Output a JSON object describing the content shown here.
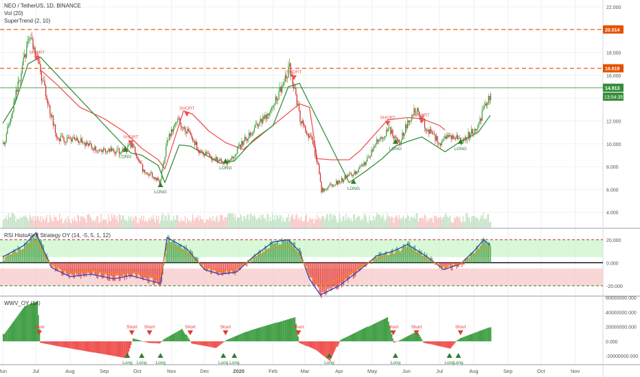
{
  "header": {
    "symbol_line": "NEO / TetherUS, 1D, BINANCE",
    "volume": "Vol (20)",
    "supertrend": "SuperTrend (2, 10)"
  },
  "colors": {
    "up": "#26a69a",
    "green_dark": "#2e7d32",
    "green_body": "#3a9e3a",
    "red": "#ef5350",
    "orange": "#e65100",
    "price_line": "#388e3c"
  },
  "chart_data": [
    {
      "type": "line",
      "panel": "price",
      "ylim": [
        2.6,
        22.6
      ],
      "yticks": [
        4,
        6,
        8,
        10,
        12,
        14,
        16,
        18,
        20,
        22
      ],
      "ytick_labels": [
        "4.000",
        "6.000",
        "8.000",
        "10.000",
        "12.000",
        "14.000",
        "16.000",
        "18.000",
        "20.000",
        "22.000"
      ],
      "x_dates": [
        "2019-06-01",
        "2019-06-25",
        "2019-07-10",
        "2019-07-20",
        "2019-08-10",
        "2019-08-25",
        "2019-09-15",
        "2019-09-25",
        "2019-10-05",
        "2019-10-15",
        "2019-10-20",
        "2019-10-28",
        "2019-11-05",
        "2019-11-15",
        "2019-11-25",
        "2019-12-10",
        "2019-12-20",
        "2019-12-28",
        "2020-01-10",
        "2020-01-25",
        "2020-02-10",
        "2020-02-15",
        "2020-02-25",
        "2020-03-05",
        "2020-03-12",
        "2020-03-15",
        "2020-03-25",
        "2020-04-05",
        "2020-04-15",
        "2020-04-25",
        "2020-05-05",
        "2020-05-15",
        "2020-05-25",
        "2020-06-02",
        "2020-06-10",
        "2020-06-20",
        "2020-07-01",
        "2020-07-10",
        "2020-07-20",
        "2020-07-28",
        "2020-08-05",
        "2020-08-12",
        "2020-08-16"
      ],
      "price": [
        10.0,
        19.5,
        14.0,
        10.5,
        10.2,
        9.6,
        9.3,
        9.9,
        7.8,
        7.2,
        6.6,
        10.5,
        12.3,
        11.0,
        9.4,
        8.6,
        8.4,
        9.2,
        10.8,
        12.5,
        15.3,
        16.7,
        12.3,
        10.4,
        8.1,
        5.9,
        6.4,
        7.0,
        7.5,
        8.4,
        10.4,
        11.2,
        10.2,
        12.2,
        13.2,
        11.1,
        10.1,
        10.7,
        10.3,
        10.9,
        11.9,
        13.5,
        14.91
      ],
      "supertrend_resistance": {
        "x": [
          "2019-07-05",
          "2019-07-20",
          "2019-08-10",
          "2019-09-01",
          "2019-09-20",
          "2019-10-05",
          "2019-10-20",
          "2019-10-26",
          "2019-11-12",
          "2019-11-20",
          "2019-12-05",
          "2019-12-20",
          "2020-01-05",
          "2020-02-25",
          "2020-03-05",
          "2020-03-12",
          "2020-03-25",
          "2020-04-10",
          "2020-04-20",
          "2020-05-15",
          "2020-06-02",
          "2020-06-15",
          "2020-07-01",
          "2020-07-06"
        ],
        "y": [
          16.5,
          15.2,
          13.2,
          12.2,
          11.0,
          9.6,
          8.6,
          7.8,
          12.9,
          12.6,
          11.1,
          10.1,
          9.5,
          13.5,
          13.2,
          8.7,
          8.6,
          8.6,
          9.4,
          12.1,
          12.3,
          12.2,
          11.6,
          11.2
        ]
      },
      "supertrend_support": {
        "x": [
          "2019-06-01",
          "2019-06-12",
          "2019-06-24",
          "2019-07-05",
          "2019-09-25",
          "2019-10-05",
          "2019-10-20",
          "2019-10-26",
          "2019-11-08",
          "2019-11-18",
          "2019-12-15",
          "2019-12-28",
          "2020-01-15",
          "2020-02-01",
          "2020-02-15",
          "2020-02-25",
          "2020-04-10",
          "2020-04-25",
          "2020-05-10",
          "2020-05-22",
          "2020-06-02",
          "2020-06-15",
          "2020-07-06",
          "2020-07-20",
          "2020-08-05",
          "2020-08-16"
        ],
        "y": [
          11.8,
          13.5,
          17.0,
          17.6,
          9.2,
          9.0,
          8.1,
          6.6,
          9.9,
          9.8,
          8.3,
          8.5,
          10.4,
          11.6,
          15.0,
          15.3,
          6.6,
          7.6,
          8.7,
          9.8,
          10.2,
          10.6,
          9.3,
          10.2,
          11.0,
          12.5
        ]
      },
      "hlines": [
        {
          "y": 20.014,
          "label": "20.014",
          "color": "#e65100",
          "style": "dashed"
        },
        {
          "y": 16.619,
          "label": "16.619",
          "color": "#e65100",
          "style": "dashed"
        },
        {
          "y": 14.913,
          "label": "14.913",
          "color": "#388e3c",
          "style": "solid"
        }
      ],
      "countdown_label": "13:54:35",
      "signals": [
        {
          "date": "2019-07-02",
          "text": "SHORT",
          "type": "short",
          "y": 17.7
        },
        {
          "date": "2019-09-25",
          "text": "SHORT",
          "type": "short",
          "y": 10.3
        },
        {
          "date": "2019-09-20",
          "text": "LONG",
          "type": "long",
          "y": 9.3
        },
        {
          "date": "2019-10-22",
          "text": "LONG",
          "type": "long",
          "y": 6.2
        },
        {
          "date": "2019-11-15",
          "text": "SHORT",
          "type": "short",
          "y": 12.8
        },
        {
          "date": "2019-12-20",
          "text": "LONG",
          "type": "long",
          "y": 8.3
        },
        {
          "date": "2020-02-20",
          "text": "SHORT",
          "type": "short",
          "y": 16.0
        },
        {
          "date": "2020-04-14",
          "text": "LONG",
          "type": "long",
          "y": 6.5
        },
        {
          "date": "2020-05-15",
          "text": "SHORT",
          "type": "short",
          "y": 12.0
        },
        {
          "date": "2020-05-22",
          "text": "LONG",
          "type": "long",
          "y": 10.0
        },
        {
          "date": "2020-06-15",
          "text": "SHORT",
          "type": "short",
          "y": 12.2
        },
        {
          "date": "2020-07-20",
          "text": "LONG",
          "type": "long",
          "y": 10.0
        }
      ]
    },
    {
      "type": "area",
      "panel": "indicator",
      "title": "RSI HistoAlert Strategy OY (14, -5, 5, 1, 12)",
      "ylim": [
        -29,
        30
      ],
      "yticks": [
        20,
        0,
        -20
      ],
      "ytick_labels": [
        "20.000",
        "0.000",
        "-20.000"
      ],
      "bands": [
        {
          "from": 5,
          "to": 20,
          "color": "#c8f5c8"
        },
        {
          "from": -5,
          "to": -20,
          "color": "#f7c6c6"
        }
      ],
      "hlines": [
        20,
        -20
      ],
      "x_dates": [
        "2019-06-01",
        "2019-06-20",
        "2019-07-01",
        "2019-07-15",
        "2019-08-01",
        "2019-08-20",
        "2019-09-10",
        "2019-09-25",
        "2019-10-10",
        "2019-10-22",
        "2019-10-28",
        "2019-11-15",
        "2019-12-01",
        "2019-12-15",
        "2019-12-30",
        "2020-01-15",
        "2020-02-01",
        "2020-02-15",
        "2020-02-25",
        "2020-03-05",
        "2020-03-15",
        "2020-04-01",
        "2020-04-20",
        "2020-05-05",
        "2020-05-20",
        "2020-06-02",
        "2020-06-20",
        "2020-07-05",
        "2020-07-20",
        "2020-08-01",
        "2020-08-10",
        "2020-08-16"
      ],
      "values": [
        5,
        15,
        26,
        -4,
        -12,
        -10,
        -14,
        -11,
        -15,
        -18,
        22,
        12,
        -6,
        -10,
        -8,
        6,
        18,
        20,
        10,
        -14,
        -28,
        -20,
        -6,
        6,
        10,
        16,
        5,
        -6,
        -1,
        10,
        20,
        15
      ]
    },
    {
      "type": "bar",
      "panel": "wvv",
      "title": "WWV_OY (14)",
      "ylim": [
        -32000000,
        62000000
      ],
      "yticks": [
        60000000,
        40000000,
        20000000,
        0,
        -20000000
      ],
      "ytick_labels": [
        "60000000.000",
        "40000000.000",
        "20000000.000",
        "0.000",
        "-20000000.000"
      ],
      "x_dates": [
        "2019-06-01",
        "2019-06-20",
        "2019-07-01",
        "2019-07-04",
        "2019-08-01",
        "2019-09-01",
        "2019-09-20",
        "2019-09-26",
        "2019-10-10",
        "2019-10-20",
        "2019-10-24",
        "2019-11-10",
        "2019-11-18",
        "2019-12-10",
        "2019-12-20",
        "2020-01-10",
        "2020-02-20",
        "2020-02-24",
        "2020-03-10",
        "2020-03-23",
        "2020-04-01",
        "2020-05-14",
        "2020-05-20",
        "2020-06-10",
        "2020-06-16",
        "2020-07-10",
        "2020-07-18",
        "2020-08-16"
      ],
      "values": [
        10000000,
        48000000,
        55000000,
        -2000000,
        -10000000,
        -18000000,
        -23000000,
        4000000,
        -2000000,
        -3000000,
        3000000,
        17000000,
        -3000000,
        -9000000,
        2000000,
        15000000,
        33000000,
        -2000000,
        -12000000,
        -27000000,
        2000000,
        33000000,
        -2000000,
        14000000,
        -2000000,
        -10000000,
        4000000,
        20000000
      ],
      "signals": [
        {
          "date": "2019-07-04",
          "text": "Short",
          "type": "short"
        },
        {
          "date": "2019-09-22",
          "text": "Long",
          "type": "long"
        },
        {
          "date": "2019-09-26",
          "text": "Short",
          "type": "short"
        },
        {
          "date": "2019-10-05",
          "text": "Long",
          "type": "long"
        },
        {
          "date": "2019-10-12",
          "text": "Short",
          "type": "short"
        },
        {
          "date": "2019-10-22",
          "text": "Long",
          "type": "long"
        },
        {
          "date": "2019-11-18",
          "text": "Short",
          "type": "short"
        },
        {
          "date": "2019-12-18",
          "text": "Long",
          "type": "long"
        },
        {
          "date": "2019-12-28",
          "text": "Long",
          "type": "long"
        },
        {
          "date": "2019-12-20",
          "text": "Short",
          "type": "short"
        },
        {
          "date": "2020-02-24",
          "text": "Short",
          "type": "short"
        },
        {
          "date": "2020-03-23",
          "text": "Long",
          "type": "long"
        },
        {
          "date": "2020-05-20",
          "text": "Short",
          "type": "short"
        },
        {
          "date": "2020-05-22",
          "text": "Long",
          "type": "long"
        },
        {
          "date": "2020-06-10",
          "text": "Short",
          "type": "short"
        },
        {
          "date": "2020-07-10",
          "text": "Long",
          "type": "long"
        },
        {
          "date": "2020-07-18",
          "text": "Long",
          "type": "long"
        },
        {
          "date": "2020-07-20",
          "text": "Short",
          "type": "short"
        }
      ]
    }
  ],
  "x_axis": {
    "ticks": [
      {
        "date": "2019-06-01",
        "label": "Jun"
      },
      {
        "date": "2019-07-01",
        "label": "Jul"
      },
      {
        "date": "2019-08-01",
        "label": "Aug"
      },
      {
        "date": "2019-09-01",
        "label": "Sep"
      },
      {
        "date": "2019-10-01",
        "label": "Oct"
      },
      {
        "date": "2019-11-01",
        "label": "Nov"
      },
      {
        "date": "2019-12-01",
        "label": "Dec"
      },
      {
        "date": "2020-01-01",
        "label": "2020"
      },
      {
        "date": "2020-02-01",
        "label": "Feb"
      },
      {
        "date": "2020-03-01",
        "label": "Mar"
      },
      {
        "date": "2020-04-01",
        "label": "Apr"
      },
      {
        "date": "2020-05-01",
        "label": "May"
      },
      {
        "date": "2020-06-01",
        "label": "Jun"
      },
      {
        "date": "2020-07-01",
        "label": "Jul"
      },
      {
        "date": "2020-08-01",
        "label": "Aug"
      },
      {
        "date": "2020-09-01",
        "label": "Sep"
      },
      {
        "date": "2020-10-01",
        "label": "Oct"
      },
      {
        "date": "2020-11-01",
        "label": "Nov"
      }
    ]
  }
}
